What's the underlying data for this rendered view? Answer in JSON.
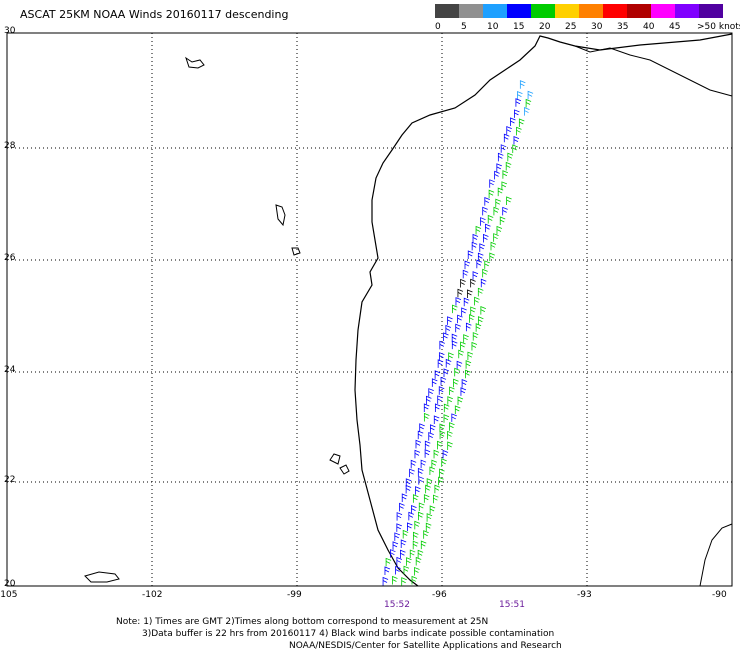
{
  "title": "ASCAT 25KM NOAA Winds 20160117 descending",
  "legend": {
    "labels": [
      "0",
      "5",
      "10",
      "15",
      "20",
      "25",
      "30",
      "35",
      "40",
      "45",
      ">50 knots"
    ],
    "colors": [
      "#444444",
      "#909090",
      "#1ea0ff",
      "#0000ff",
      "#00cc00",
      "#ffd000",
      "#ff8000",
      "#ff0000",
      "#b00000",
      "#ff00ff",
      "#8000ff",
      "#5000a0"
    ]
  },
  "axes": {
    "lat_labels": [
      "30",
      "28",
      "26",
      "24",
      "22",
      "20"
    ],
    "lon_labels": [
      "-105",
      "-102",
      "-99",
      "-96",
      "-93",
      "-90"
    ]
  },
  "times": [
    "15:52",
    "15:51"
  ],
  "notes": [
    "Note: 1) Times are GMT 2)Times along bottom correspond to measurement at 25N",
    "3)Data buffer is 22 hrs from 20160117 4) Black wind barbs indicate possible contamination",
    "NOAA/NESDIS/Center for Satellite Applications and Research"
  ]
}
